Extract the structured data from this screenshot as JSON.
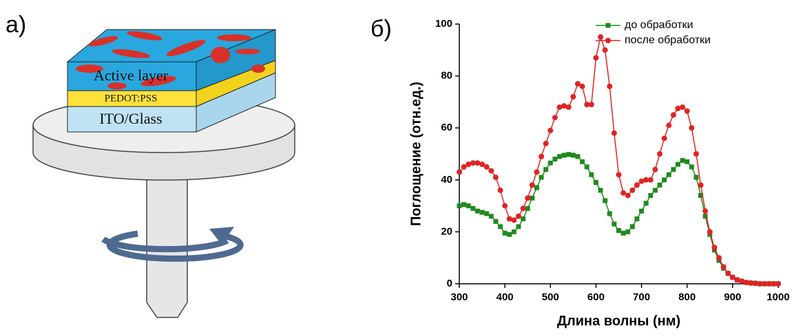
{
  "figure": {
    "panel_a": {
      "label": "а)",
      "layers": [
        "Active layer",
        "PEDOT:PSS",
        "ITO/Glass"
      ]
    },
    "panel_b": {
      "label": "б)"
    }
  },
  "chart_data": {
    "type": "line",
    "x_label": "Длина волны (нм)",
    "y_label": "Поглощение (отн.ед.)",
    "x": [
      300,
      310,
      320,
      330,
      340,
      350,
      360,
      370,
      380,
      390,
      400,
      410,
      420,
      430,
      440,
      450,
      460,
      470,
      480,
      490,
      500,
      510,
      520,
      530,
      540,
      550,
      560,
      570,
      580,
      590,
      600,
      610,
      620,
      630,
      640,
      650,
      660,
      670,
      680,
      690,
      700,
      710,
      720,
      730,
      740,
      750,
      760,
      770,
      780,
      790,
      800,
      810,
      820,
      830,
      840,
      850,
      860,
      870,
      880,
      890,
      900,
      910,
      920,
      930,
      940,
      950,
      960,
      970,
      980,
      990,
      1000
    ],
    "series": [
      {
        "name": "до обработки",
        "color": "#1f8a1f",
        "marker": "square",
        "values": [
          30,
          30.5,
          30,
          29,
          28,
          27.5,
          27,
          26,
          24,
          22,
          19.5,
          19,
          20,
          22,
          25,
          29,
          33,
          37,
          41,
          44,
          46.5,
          48,
          49,
          49.5,
          49.8,
          49.5,
          49,
          47,
          45,
          42,
          39,
          36,
          32,
          27,
          23,
          20.5,
          19.5,
          20,
          22,
          25,
          28,
          31,
          34,
          36,
          38,
          40,
          42,
          44,
          46,
          47.5,
          47,
          45,
          41,
          34,
          26,
          19,
          13,
          9,
          6,
          4,
          2.5,
          1.5,
          1,
          0.5,
          0.3,
          0.2,
          0,
          0,
          0,
          0,
          0
        ]
      },
      {
        "name": "после обработки",
        "color": "#e02424",
        "marker": "circle",
        "values": [
          43,
          45,
          46,
          46.5,
          46.5,
          46,
          45,
          43.5,
          41,
          36,
          30,
          25,
          24.5,
          26,
          29,
          33,
          38,
          43,
          49,
          54,
          59,
          64,
          68,
          68.5,
          68,
          72,
          77,
          76,
          69,
          69,
          87,
          95,
          90,
          76,
          58,
          42,
          35,
          34,
          36,
          38,
          39.5,
          40,
          40,
          44,
          50,
          56,
          61,
          65,
          67.5,
          68,
          66.5,
          60,
          50,
          38,
          28,
          20,
          14,
          10,
          6.5,
          4,
          2.5,
          1.5,
          1,
          0.5,
          0.3,
          0.2,
          0,
          0,
          0,
          0,
          0
        ]
      }
    ],
    "xlim": [
      300,
      1000
    ],
    "ylim": [
      0,
      100
    ],
    "xticks": [
      300,
      400,
      500,
      600,
      700,
      800,
      900,
      1000
    ],
    "yticks": [
      0,
      20,
      40,
      60,
      80,
      100
    ],
    "legend": "upper right"
  }
}
